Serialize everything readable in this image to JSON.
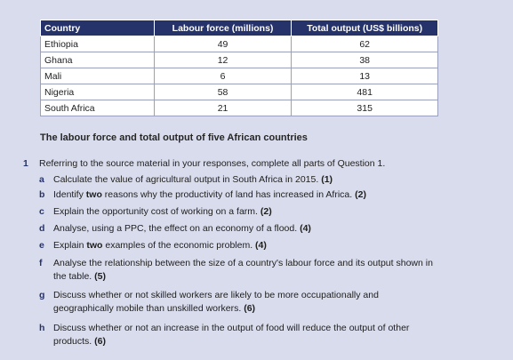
{
  "table": {
    "headers": [
      "Country",
      "Labour force (millions)",
      "Total output (US$ billions)"
    ],
    "rows": [
      [
        "Ethiopia",
        "49",
        "62"
      ],
      [
        "Ghana",
        "12",
        "38"
      ],
      [
        "Mali",
        "6",
        "13"
      ],
      [
        "Nigeria",
        "58",
        "481"
      ],
      [
        "South Africa",
        "21",
        "315"
      ]
    ]
  },
  "caption": "The labour force and total output of five African countries",
  "question": {
    "number": "1",
    "intro": "Referring to the source material in your responses, complete all parts of Question 1.",
    "parts": [
      {
        "letter": "a",
        "pre": "Calculate the value of agricultural output in South Africa in 2015.",
        "bold": "",
        "post": "",
        "marks": "(1)"
      },
      {
        "letter": "b",
        "pre": "Identify",
        "bold": "two",
        "post": "reasons why the productivity of land has increased in Africa.",
        "marks": "(2)"
      },
      {
        "letter": "c",
        "pre": "Explain the opportunity cost of working on a farm.",
        "bold": "",
        "post": "",
        "marks": "(2)"
      },
      {
        "letter": "d",
        "pre": "Analyse, using a PPC, the effect on an economy of a flood.",
        "bold": "",
        "post": "",
        "marks": "(4)"
      },
      {
        "letter": "e",
        "pre": "Explain",
        "bold": "two",
        "post": "examples of the economic problem.",
        "marks": "(4)"
      },
      {
        "letter": "f",
        "pre": "Analyse the relationship between the size of a country's labour force and its output shown in the table.",
        "bold": "",
        "post": "",
        "marks": "(5)"
      },
      {
        "letter": "g",
        "pre": "Discuss whether or not skilled workers are likely to be more occupationally and geographically mobile than unskilled workers.",
        "bold": "",
        "post": "",
        "marks": "(6)"
      },
      {
        "letter": "h",
        "pre": "Discuss whether or not an increase in the output of food will reduce the output of other products.",
        "bold": "",
        "post": "",
        "marks": "(6)"
      }
    ]
  }
}
